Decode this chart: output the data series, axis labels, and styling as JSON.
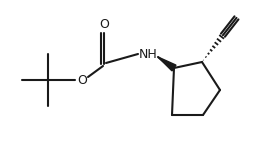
{
  "bg_color": "#ffffff",
  "line_color": "#1a1a1a",
  "line_width": 1.5,
  "text_color": "#1a1a1a",
  "font_size": 9,
  "label_NH": "NH",
  "label_O_carbonyl": "O",
  "label_O_ester": "O"
}
